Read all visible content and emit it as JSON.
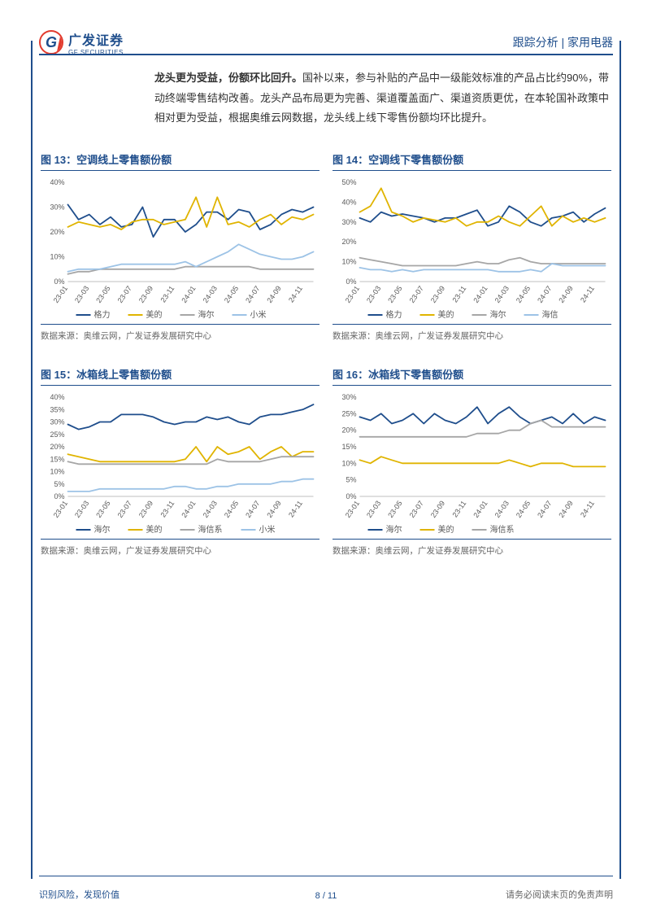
{
  "header": {
    "logo_cn": "广发证券",
    "logo_en": "GF SECURITIES",
    "right": "跟踪分析 | 家用电器"
  },
  "paragraph": {
    "lead": "龙头更为受益，份额环比回升。",
    "rest": "国补以来，参与补贴的产品中一级能效标准的产品占比约90%，带动终端零售结构改善。龙头产品布局更为完善、渠道覆盖面广、渠道资质更优，在本轮国补政策中相对更为受益，根据奥维云网数据，龙头线上线下零售份额均环比提升。"
  },
  "source_text": "数据来源：奥维云网，广发证券发展研究中心",
  "footer": {
    "left": "识别风险，发现价值",
    "center": "8 / 11",
    "right": "请务必阅读末页的免责声明"
  },
  "colors": {
    "navy": "#1f4e8c",
    "gold": "#e0b400",
    "grey": "#a6a6a6",
    "lightblue": "#9dc3e6",
    "axis": "#bfbfbf",
    "grid": "#d9d9d9",
    "text": "#595959"
  },
  "x_categories": [
    "23-01",
    "23-03",
    "23-05",
    "23-07",
    "23-09",
    "23-11",
    "24-01",
    "24-03",
    "24-05",
    "24-07",
    "24-09",
    "24-11"
  ],
  "charts": [
    {
      "title": "图 13：空调线上零售额份额",
      "ymax": 40,
      "ystep": 10,
      "series": [
        {
          "name": "格力",
          "color": "#1f4e8c",
          "values": [
            31,
            25,
            27,
            23,
            26,
            22,
            23,
            30,
            18,
            25,
            25,
            20,
            23,
            28,
            28,
            25,
            29,
            28,
            21,
            23,
            27,
            29,
            28,
            30
          ]
        },
        {
          "name": "美的",
          "color": "#e0b400",
          "values": [
            22,
            24,
            23,
            22,
            23,
            21,
            24,
            25,
            25,
            23,
            24,
            25,
            34,
            22,
            34,
            23,
            24,
            22,
            25,
            27,
            23,
            26,
            25,
            27
          ]
        },
        {
          "name": "海尔",
          "color": "#a6a6a6",
          "values": [
            3,
            4,
            4,
            5,
            5,
            5,
            5,
            5,
            5,
            5,
            5,
            6,
            6,
            6,
            6,
            6,
            6,
            6,
            5,
            5,
            5,
            5,
            5,
            5
          ]
        },
        {
          "name": "小米",
          "color": "#9dc3e6",
          "values": [
            4,
            5,
            5,
            5,
            6,
            7,
            7,
            7,
            7,
            7,
            7,
            8,
            6,
            8,
            10,
            12,
            15,
            13,
            11,
            10,
            9,
            9,
            10,
            12
          ]
        }
      ]
    },
    {
      "title": "图 14：空调线下零售额份额",
      "ymax": 50,
      "ystep": 10,
      "series": [
        {
          "name": "格力",
          "color": "#1f4e8c",
          "values": [
            32,
            30,
            35,
            33,
            34,
            33,
            32,
            30,
            32,
            32,
            34,
            36,
            28,
            30,
            38,
            35,
            30,
            28,
            32,
            33,
            35,
            30,
            34,
            37
          ]
        },
        {
          "name": "美的",
          "color": "#e0b400",
          "values": [
            35,
            38,
            47,
            35,
            33,
            30,
            32,
            31,
            30,
            32,
            28,
            30,
            30,
            33,
            30,
            28,
            33,
            38,
            28,
            33,
            30,
            32,
            30,
            32
          ]
        },
        {
          "name": "海尔",
          "color": "#a6a6a6",
          "values": [
            12,
            11,
            10,
            9,
            8,
            8,
            8,
            8,
            8,
            8,
            9,
            10,
            9,
            9,
            11,
            12,
            10,
            9,
            9,
            9,
            9,
            9,
            9,
            9
          ]
        },
        {
          "name": "海信",
          "color": "#9dc3e6",
          "values": [
            7,
            6,
            6,
            5,
            6,
            5,
            6,
            6,
            6,
            6,
            6,
            6,
            6,
            5,
            5,
            5,
            6,
            5,
            9,
            8,
            8,
            8,
            8,
            8
          ]
        }
      ]
    },
    {
      "title": "图 15：冰箱线上零售额份额",
      "ymax": 40,
      "ystep": 5,
      "series": [
        {
          "name": "海尔",
          "color": "#1f4e8c",
          "values": [
            29,
            27,
            28,
            30,
            30,
            33,
            33,
            33,
            32,
            30,
            29,
            30,
            30,
            32,
            31,
            32,
            30,
            29,
            32,
            33,
            33,
            34,
            35,
            37
          ]
        },
        {
          "name": "美的",
          "color": "#e0b400",
          "values": [
            17,
            16,
            15,
            14,
            14,
            14,
            14,
            14,
            14,
            14,
            14,
            15,
            20,
            14,
            20,
            17,
            18,
            20,
            15,
            18,
            20,
            16,
            18,
            18
          ]
        },
        {
          "name": "海信系",
          "color": "#a6a6a6",
          "values": [
            14,
            13,
            13,
            13,
            13,
            13,
            13,
            13,
            13,
            13,
            13,
            13,
            13,
            13,
            15,
            14,
            14,
            14,
            14,
            15,
            16,
            16,
            16,
            16
          ]
        },
        {
          "name": "小米",
          "color": "#9dc3e6",
          "values": [
            2,
            2,
            2,
            3,
            3,
            3,
            3,
            3,
            3,
            3,
            4,
            4,
            3,
            3,
            4,
            4,
            5,
            5,
            5,
            5,
            6,
            6,
            7,
            7
          ]
        }
      ]
    },
    {
      "title": "图 16：冰箱线下零售额份额",
      "ymax": 30,
      "ystep": 5,
      "series": [
        {
          "name": "海尔",
          "color": "#1f4e8c",
          "values": [
            24,
            23,
            25,
            22,
            23,
            25,
            22,
            25,
            23,
            22,
            24,
            27,
            22,
            25,
            27,
            24,
            22,
            23,
            24,
            22,
            25,
            22,
            24,
            23
          ]
        },
        {
          "name": "美的",
          "color": "#e0b400",
          "values": [
            11,
            10,
            12,
            11,
            10,
            10,
            10,
            10,
            10,
            10,
            10,
            10,
            10,
            10,
            11,
            10,
            9,
            10,
            10,
            10,
            9,
            9,
            9,
            9
          ]
        },
        {
          "name": "海信系",
          "color": "#a6a6a6",
          "values": [
            18,
            18,
            18,
            18,
            18,
            18,
            18,
            18,
            18,
            18,
            18,
            19,
            19,
            19,
            20,
            20,
            22,
            23,
            21,
            21,
            21,
            21,
            21,
            21
          ]
        }
      ]
    }
  ]
}
